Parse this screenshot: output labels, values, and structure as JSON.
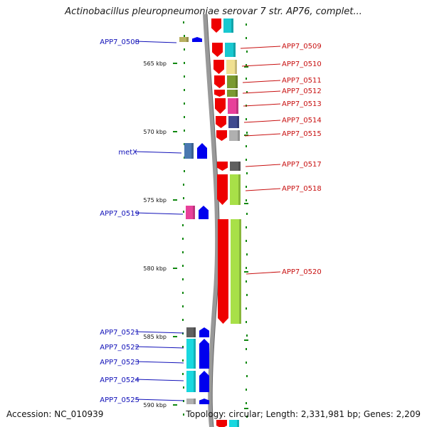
{
  "title": "Actinobacillus pleuropneumoniae serovar 7 str. AP76, complet...",
  "footer": {
    "accession": "Accession: NC_010939",
    "summary": "Topology: circular; Length: 2,331,981 bp; Genes: 2,209"
  },
  "ticks": [
    "565 kbp",
    "570 kbp",
    "575 kbp",
    "580 kbp",
    "585 kbp",
    "590 kbp"
  ],
  "genes_left": [
    {
      "label": "APP7_0508",
      "color": "#b8b060"
    },
    {
      "label": "metX",
      "color": "#4a78b0"
    },
    {
      "label": "APP7_0519",
      "color": "#e8409a"
    },
    {
      "label": "APP7_0521",
      "color": "#606060"
    },
    {
      "label": "APP7_0522",
      "color": "#18d8e0"
    },
    {
      "label": "APP7_0523",
      "color": "#18d8e0"
    },
    {
      "label": "APP7_0524",
      "color": "#18d8e0"
    },
    {
      "label": "APP7_0525",
      "color": "#b0b0b0"
    }
  ],
  "genes_right": [
    {
      "label": "APP7_0509",
      "color": "#18c8d0"
    },
    {
      "label": "APP7_0510",
      "color": "#f0e090"
    },
    {
      "label": "APP7_0511",
      "color": "#7a9a30"
    },
    {
      "label": "APP7_0512",
      "color": "#7a9a30"
    },
    {
      "label": "APP7_0513",
      "color": "#e8409a"
    },
    {
      "label": "APP7_0514",
      "color": "#404a90"
    },
    {
      "label": "APP7_0515",
      "color": "#b0b0b0"
    },
    {
      "label": "APP7_0517",
      "color": "#606060"
    },
    {
      "label": "APP7_0518",
      "color": "#a8e048"
    },
    {
      "label": "APP7_0520",
      "color": "#a8e048"
    }
  ],
  "colors": {
    "forward_strand": "#ee0000",
    "reverse_strand": "#0000ee",
    "backbone": "#888888",
    "tick": "#118811"
  }
}
